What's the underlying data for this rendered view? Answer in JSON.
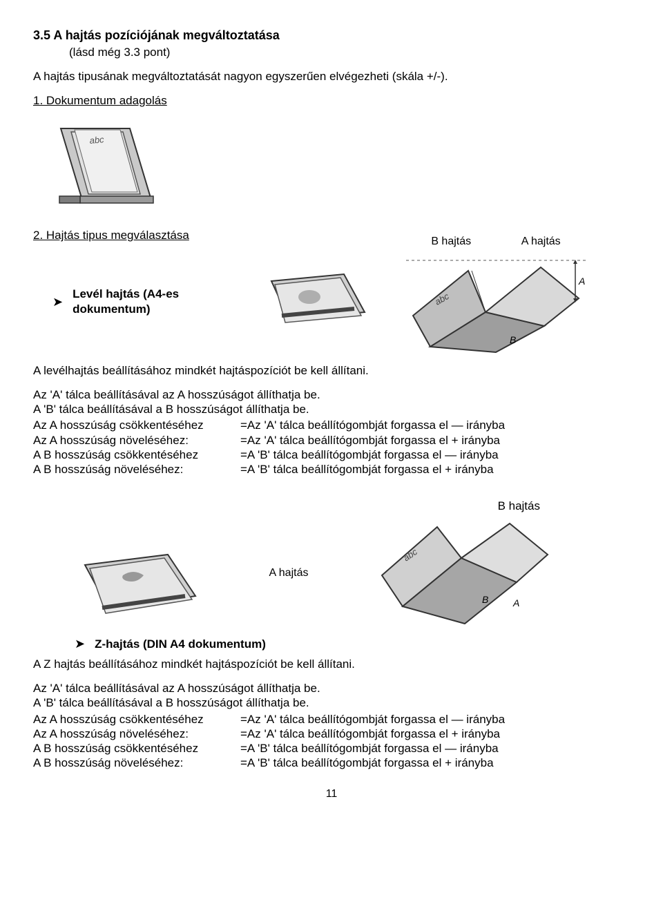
{
  "heading": "3.5 A hajtás pozíciójának megváltoztatása",
  "subheading": "(lásd még 3.3 pont)",
  "intro": "A hajtás tipusának megváltoztatását nagyon egyszerűen elvégezheti (skála +/-).",
  "step1": "1. Dokumentum adagolás",
  "step2": "2. Hajtás tipus megválasztása",
  "letterFold": {
    "bullet": "Levél hajtás (A4-es dokumentum)",
    "labelB": "B hajtás",
    "labelA": "A hajtás",
    "line1": "A levélhajtás beállításához mindkét hajtáspozíciót be kell állítani.",
    "line2": "Az 'A' tálca beállításával az A hosszúságot állíthatja be.",
    "line3": "A 'B' tálca beállításával a B hosszúságot állíthatja be."
  },
  "rows": [
    {
      "c1": "Az A hosszúság csökkentéséhez",
      "c2": "=Az 'A' tálca beállítógombját forgassa el — irányba"
    },
    {
      "c1": "Az A hosszúság növeléséhez:",
      "c2": "=Az 'A' tálca beállítógombját forgassa el + irányba"
    },
    {
      "c1": "A B hosszúság csökkentéséhez",
      "c2": "=A 'B' tálca beállítógombját forgassa el — irányba"
    },
    {
      "c1": "A B hosszúság növeléséhez:",
      "c2": "=A 'B' tálca beállítógombját forgassa el + irányba"
    }
  ],
  "zFold": {
    "labelB": "B hajtás",
    "labelA": "A hajtás",
    "bullet": "Z-hajtás (DIN A4 dokumentum)",
    "line1": "A Z hajtás beállításához mindkét hajtáspozíciót be kell állítani.",
    "line2": "Az 'A' tálca beállításával az A hosszúságot állíthatja be.",
    "line3": "A 'B' tálca beállításával a B hosszúságot állíthatja be."
  },
  "rows2": [
    {
      "c1": "Az A hosszúság csökkentéséhez",
      "c2": "=Az 'A' tálca beállítógombját forgassa el — irányba"
    },
    {
      "c1": "Az A hosszúság növeléséhez:",
      "c2": "=Az 'A' tálca beállítógombját forgassa el + irányba"
    },
    {
      "c1": "A B hosszúság csökkentéséhez",
      "c2": "=A 'B' tálca beállítógombját forgassa el — irányba"
    },
    {
      "c1": "A B hosszúság növeléséhez:",
      "c2": "=A 'B' tálca beállítógombját forgassa el + irányba"
    }
  ],
  "pageNumber": "11",
  "colors": {
    "paperLight": "#d9d9d9",
    "paperMid": "#bfbfbf",
    "paperDark": "#9e9e9e",
    "stroke": "#333333"
  }
}
